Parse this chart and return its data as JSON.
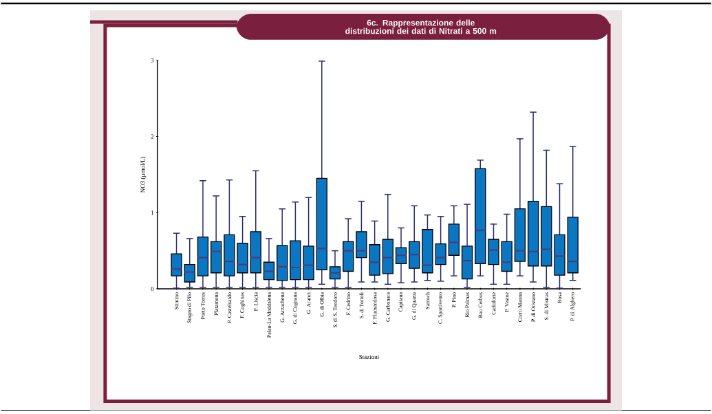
{
  "chart_data": {
    "type": "box",
    "title": "6c. Rappresentazione delle distribuzioni dei dati di Nitrati a 500 m",
    "xlabel": "Stazioni",
    "ylabel": "NO3 (µmol/L)",
    "color": "#0b76c1",
    "categories": [
      "Stintino",
      "Stagno di Pilo",
      "Porto Torres",
      "Platamona",
      "P. Castelsardo",
      "F. Coghinas",
      "F. Liscia",
      "Palau-La Maddalena",
      "G. Arzachena",
      "G. di Cugnana",
      "G. Aranci",
      "G. di Olbia",
      "S. di S. Teodoro",
      "F. Cedrino",
      "S. di Tortolì",
      "F. Flumendosa",
      "G. Carbonara",
      "Capitana",
      "G. di Quartu",
      "Sarroch",
      "C. Spartivento",
      "P. Pino",
      "Rio Palmas",
      "Bau Cerbus",
      "Carloforte",
      "P. Vesme",
      "Corru Mannu",
      "P. di Oristano",
      "S. di Mistras",
      "Bosa",
      "P. di Alghero"
    ],
    "boxes": [
      {
        "low": 0.01,
        "q1": 0.17,
        "median": 0.26,
        "q3": 0.46,
        "high": 0.73
      },
      {
        "low": 0.02,
        "q1": 0.09,
        "median": 0.22,
        "q3": 0.32,
        "high": 0.66
      },
      {
        "low": 0.02,
        "q1": 0.17,
        "median": 0.41,
        "q3": 0.68,
        "high": 1.42
      },
      {
        "low": 0.02,
        "q1": 0.21,
        "median": 0.49,
        "q3": 0.62,
        "high": 1.22
      },
      {
        "low": 0.02,
        "q1": 0.17,
        "median": 0.36,
        "q3": 0.71,
        "high": 1.43
      },
      {
        "low": 0.02,
        "q1": 0.21,
        "median": 0.32,
        "q3": 0.6,
        "high": 0.95
      },
      {
        "low": 0.02,
        "q1": 0.21,
        "median": 0.41,
        "q3": 0.75,
        "high": 1.55
      },
      {
        "low": 0.02,
        "q1": 0.12,
        "median": 0.23,
        "q3": 0.35,
        "high": 0.66
      },
      {
        "low": 0.02,
        "q1": 0.11,
        "median": 0.29,
        "q3": 0.57,
        "high": 1.05
      },
      {
        "low": 0.02,
        "q1": 0.12,
        "median": 0.28,
        "q3": 0.63,
        "high": 1.14
      },
      {
        "low": 0.02,
        "q1": 0.12,
        "median": 0.31,
        "q3": 0.56,
        "high": 1.2
      },
      {
        "low": 0.06,
        "q1": 0.25,
        "median": 0.53,
        "q3": 1.45,
        "high": 2.99
      },
      {
        "low": 0.02,
        "q1": 0.13,
        "median": 0.21,
        "q3": 0.29,
        "high": 0.5
      },
      {
        "low": 0.02,
        "q1": 0.23,
        "median": 0.5,
        "q3": 0.62,
        "high": 0.92
      },
      {
        "low": 0.09,
        "q1": 0.41,
        "median": 0.5,
        "q3": 0.75,
        "high": 1.15
      },
      {
        "low": 0.09,
        "q1": 0.18,
        "median": 0.35,
        "q3": 0.58,
        "high": 0.89
      },
      {
        "low": 0.06,
        "q1": 0.2,
        "median": 0.41,
        "q3": 0.65,
        "high": 1.24
      },
      {
        "low": 0.08,
        "q1": 0.33,
        "median": 0.44,
        "q3": 0.54,
        "high": 0.8
      },
      {
        "low": 0.09,
        "q1": 0.27,
        "median": 0.45,
        "q3": 0.62,
        "high": 1.09
      },
      {
        "low": 0.11,
        "q1": 0.21,
        "median": 0.31,
        "q3": 0.78,
        "high": 0.97
      },
      {
        "low": 0.1,
        "q1": 0.32,
        "median": 0.41,
        "q3": 0.59,
        "high": 0.95
      },
      {
        "low": 0.17,
        "q1": 0.44,
        "median": 0.61,
        "q3": 0.85,
        "high": 1.09
      },
      {
        "low": 0.02,
        "q1": 0.13,
        "median": 0.37,
        "q3": 0.56,
        "high": 1.11
      },
      {
        "low": 0.17,
        "q1": 0.33,
        "median": 0.77,
        "q3": 1.58,
        "high": 1.69
      },
      {
        "low": 0.06,
        "q1": 0.32,
        "median": 0.51,
        "q3": 0.65,
        "high": 0.85
      },
      {
        "low": 0.06,
        "q1": 0.23,
        "median": 0.35,
        "q3": 0.62,
        "high": 0.98
      },
      {
        "low": 0.17,
        "q1": 0.36,
        "median": 0.5,
        "q3": 1.05,
        "high": 1.97
      },
      {
        "low": 0.09,
        "q1": 0.3,
        "median": 0.49,
        "q3": 1.15,
        "high": 2.32
      },
      {
        "low": 0.02,
        "q1": 0.3,
        "median": 0.52,
        "q3": 1.08,
        "high": 1.82
      },
      {
        "low": 0.01,
        "q1": 0.18,
        "median": 0.43,
        "q3": 0.71,
        "high": 1.38
      },
      {
        "low": 0.11,
        "q1": 0.21,
        "median": 0.36,
        "q3": 0.94,
        "high": 1.87
      }
    ],
    "ylim": [
      0,
      3
    ],
    "yticks": [
      0,
      1,
      2,
      3
    ]
  }
}
